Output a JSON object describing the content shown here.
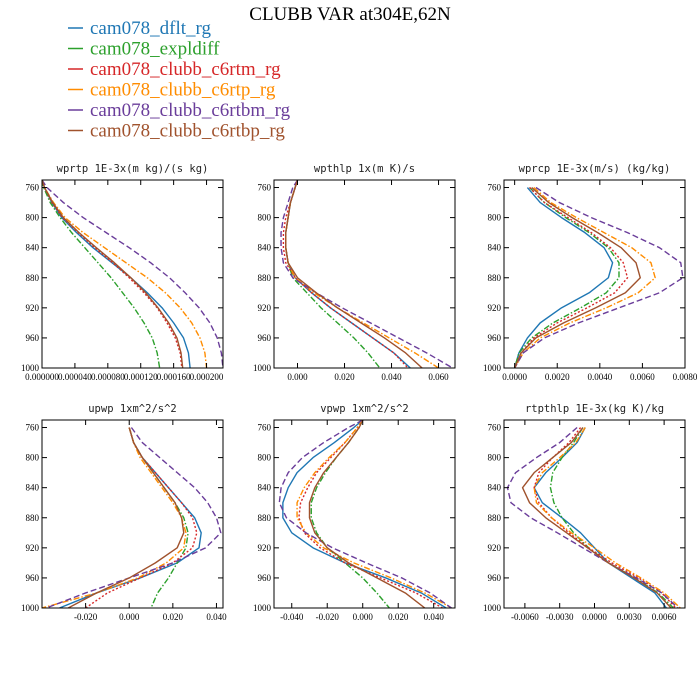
{
  "figure": {
    "title": "CLUBB VAR at304E,62N",
    "legend": [
      {
        "name": "cam078_dflt_rg",
        "color": "#1f77b4",
        "dash": "solid"
      },
      {
        "name": "cam078_expldiff",
        "color": "#2ca02c",
        "dash": "dashdot"
      },
      {
        "name": "cam078_clubb_c6rtm_rg",
        "color": "#d62728",
        "dash": "dotted"
      },
      {
        "name": "cam078_clubb_c6rtp_rg",
        "color": "#ff8c00",
        "dash": "dashdot"
      },
      {
        "name": "cam078_clubb_c6rtbm_rg",
        "color": "#6a3d9a",
        "dash": "dash"
      },
      {
        "name": "cam078_clubb_c6rtbp_rg",
        "color": "#a0522d",
        "dash": "solid"
      }
    ]
  },
  "chart_data": [
    {
      "type": "line",
      "title": "wprtp  1E-3x(m kg)/(s kg)",
      "xlim": [
        0.0,
        0.00022
      ],
      "ylim": [
        1000,
        750
      ],
      "xticks": [
        0.0,
        4e-05,
        8e-05,
        0.00012,
        0.00016,
        0.0002
      ],
      "xtick_labels": [
        "0.000000",
        "0.000040",
        "0.000080",
        "0.000120",
        "0.000160",
        "0.000200"
      ],
      "yticks": [
        760,
        800,
        840,
        880,
        920,
        960,
        1000
      ],
      "y": [
        750,
        760,
        780,
        800,
        820,
        840,
        860,
        880,
        900,
        920,
        940,
        960,
        980,
        1000
      ],
      "series": [
        {
          "values": [
            0.0,
            3e-06,
            1.2e-05,
            2.4e-05,
            4.2e-05,
            6.2e-05,
            8.5e-05,
            0.000108,
            0.000128,
            0.000146,
            0.00016,
            0.000172,
            0.000178,
            0.00018
          ]
        },
        {
          "values": [
            0.0,
            2e-06,
            1e-05,
            2.2e-05,
            3.6e-05,
            5.2e-05,
            6.8e-05,
            8.4e-05,
            9.8e-05,
            0.000112,
            0.000124,
            0.000134,
            0.00014,
            0.000143
          ]
        },
        {
          "values": [
            0.0,
            3e-06,
            1.2e-05,
            2.5e-05,
            4.4e-05,
            6.4e-05,
            8.6e-05,
            0.000106,
            0.000124,
            0.00014,
            0.000152,
            0.000162,
            0.000168,
            0.00017
          ]
        },
        {
          "values": [
            0.0,
            3e-06,
            1.4e-05,
            2.8e-05,
            5e-05,
            7.6e-05,
            0.000102,
            0.000128,
            0.00015,
            0.000168,
            0.000182,
            0.000192,
            0.000198,
            0.0002
          ]
        },
        {
          "values": [
            0.0,
            6e-06,
            2.6e-05,
            5e-05,
            7.8e-05,
            0.000106,
            0.000132,
            0.000155,
            0.000174,
            0.000191,
            0.000204,
            0.000213,
            0.000218,
            0.00022
          ]
        },
        {
          "values": [
            0.0,
            3e-06,
            1.3e-05,
            2.6e-05,
            4.5e-05,
            6.6e-05,
            8.8e-05,
            0.000108,
            0.000126,
            0.000141,
            0.000154,
            0.000164,
            0.000169,
            0.000171
          ]
        }
      ]
    },
    {
      "type": "line",
      "title": "wpthlp  1x(m K)/s",
      "xlim": [
        -0.01,
        0.067
      ],
      "ylim": [
        1000,
        750
      ],
      "xticks": [
        0.0,
        0.02,
        0.04,
        0.06
      ],
      "xtick_labels": [
        "0.000",
        "0.020",
        "0.040",
        "0.060"
      ],
      "yticks": [
        760,
        800,
        840,
        880,
        920,
        960,
        1000
      ],
      "y": [
        750,
        760,
        780,
        800,
        820,
        840,
        860,
        880,
        900,
        920,
        940,
        960,
        980,
        1000
      ],
      "series": [
        {
          "values": [
            0.0,
            -0.001,
            -0.003,
            -0.004,
            -0.005,
            -0.005,
            -0.004,
            -0.001,
            0.006,
            0.014,
            0.023,
            0.032,
            0.041,
            0.048
          ]
        },
        {
          "values": [
            0.0,
            -0.001,
            -0.003,
            -0.004,
            -0.005,
            -0.005,
            -0.004,
            -0.002,
            0.004,
            0.01,
            0.017,
            0.024,
            0.03,
            0.035
          ]
        },
        {
          "values": [
            0.0,
            -0.001,
            -0.003,
            -0.005,
            -0.006,
            -0.006,
            -0.005,
            -0.001,
            0.006,
            0.014,
            0.023,
            0.032,
            0.041,
            0.047
          ]
        },
        {
          "values": [
            0.0,
            -0.001,
            -0.003,
            -0.004,
            -0.005,
            -0.005,
            -0.004,
            -0.001,
            0.007,
            0.017,
            0.028,
            0.039,
            0.05,
            0.06
          ]
        },
        {
          "values": [
            0.0,
            -0.002,
            -0.004,
            -0.006,
            -0.007,
            -0.007,
            -0.006,
            -0.002,
            0.008,
            0.019,
            0.031,
            0.043,
            0.055,
            0.066
          ]
        },
        {
          "values": [
            0.0,
            -0.001,
            -0.003,
            -0.004,
            -0.005,
            -0.005,
            -0.004,
            0.0,
            0.008,
            0.017,
            0.027,
            0.037,
            0.046,
            0.053
          ]
        }
      ]
    },
    {
      "type": "line",
      "title": "wprcp  1E-3x(m/s) (kg/kg)",
      "xlim": [
        -0.0005,
        0.008
      ],
      "ylim": [
        1000,
        750
      ],
      "xticks": [
        0.0,
        0.002,
        0.004,
        0.006,
        0.008
      ],
      "xtick_labels": [
        "0.0000",
        "0.0020",
        "0.0040",
        "0.0060",
        "0.0080"
      ],
      "yticks": [
        760,
        800,
        840,
        880,
        920,
        960,
        1000
      ],
      "y": [
        760,
        780,
        800,
        820,
        840,
        860,
        880,
        900,
        920,
        940,
        960,
        980,
        1000
      ],
      "series": [
        {
          "values": [
            0.0006,
            0.0012,
            0.0022,
            0.0033,
            0.0042,
            0.0046,
            0.0044,
            0.0035,
            0.0022,
            0.0012,
            0.0006,
            0.0002,
            0.0
          ]
        },
        {
          "values": [
            0.0007,
            0.0014,
            0.0024,
            0.0035,
            0.0044,
            0.0049,
            0.0049,
            0.0043,
            0.0031,
            0.0018,
            0.0008,
            0.0002,
            0.0
          ]
        },
        {
          "values": [
            0.0007,
            0.0014,
            0.0025,
            0.0036,
            0.0045,
            0.0051,
            0.0053,
            0.0047,
            0.0034,
            0.002,
            0.0009,
            0.0003,
            0.0
          ]
        },
        {
          "values": [
            0.0009,
            0.0017,
            0.0029,
            0.0042,
            0.0055,
            0.0064,
            0.0066,
            0.0058,
            0.0043,
            0.0026,
            0.0012,
            0.0004,
            0.0
          ]
        },
        {
          "values": [
            0.001,
            0.0021,
            0.0036,
            0.0053,
            0.0068,
            0.0078,
            0.0079,
            0.0068,
            0.0049,
            0.003,
            0.0014,
            0.0004,
            0.0
          ]
        },
        {
          "values": [
            0.0008,
            0.0016,
            0.0027,
            0.0039,
            0.005,
            0.0057,
            0.0059,
            0.0052,
            0.0038,
            0.0023,
            0.001,
            0.0003,
            0.0
          ]
        }
      ]
    },
    {
      "type": "line",
      "title": "upwp  1xm^2/s^2",
      "xlim": [
        -0.04,
        0.043
      ],
      "ylim": [
        1000,
        750
      ],
      "xticks": [
        -0.02,
        0.0,
        0.02,
        0.04
      ],
      "xtick_labels": [
        "-0.020",
        "0.000",
        "0.020",
        "0.040"
      ],
      "yticks": [
        760,
        800,
        840,
        880,
        920,
        960,
        1000
      ],
      "y": [
        760,
        780,
        800,
        820,
        840,
        860,
        880,
        900,
        920,
        940,
        960,
        980,
        1000
      ],
      "series": [
        {
          "values": [
            0.0,
            0.002,
            0.006,
            0.012,
            0.018,
            0.024,
            0.03,
            0.033,
            0.032,
            0.022,
            0.005,
            -0.015,
            -0.032
          ]
        },
        {
          "values": [
            0.0,
            0.002,
            0.006,
            0.011,
            0.016,
            0.021,
            0.025,
            0.027,
            0.026,
            0.022,
            0.018,
            0.013,
            0.01
          ]
        },
        {
          "values": [
            0.0,
            0.002,
            0.006,
            0.012,
            0.018,
            0.024,
            0.029,
            0.031,
            0.029,
            0.02,
            0.005,
            -0.01,
            -0.02
          ]
        },
        {
          "values": [
            0.0,
            0.002,
            0.005,
            0.01,
            0.015,
            0.02,
            0.024,
            0.026,
            0.025,
            0.017,
            0.004,
            -0.015,
            -0.04
          ]
        },
        {
          "values": [
            0.001,
            0.006,
            0.014,
            0.022,
            0.03,
            0.036,
            0.04,
            0.042,
            0.035,
            0.02,
            0.0,
            -0.02,
            -0.038
          ]
        },
        {
          "values": [
            0.0,
            0.002,
            0.006,
            0.011,
            0.016,
            0.021,
            0.024,
            0.025,
            0.022,
            0.012,
            0.0,
            -0.015,
            -0.028
          ]
        }
      ]
    },
    {
      "type": "line",
      "title": "vpwp  1xm^2/s^2",
      "xlim": [
        -0.05,
        0.052
      ],
      "ylim": [
        1000,
        750
      ],
      "xticks": [
        -0.04,
        -0.02,
        0.0,
        0.02,
        0.04
      ],
      "xtick_labels": [
        "-0.040",
        "-0.020",
        "0.000",
        "0.020",
        "0.040"
      ],
      "yticks": [
        760,
        800,
        840,
        880,
        920,
        960,
        1000
      ],
      "y": [
        750,
        760,
        780,
        800,
        820,
        840,
        860,
        880,
        900,
        920,
        940,
        960,
        980,
        1000
      ],
      "series": [
        {
          "values": [
            0.0,
            -0.005,
            -0.016,
            -0.028,
            -0.037,
            -0.042,
            -0.045,
            -0.045,
            -0.04,
            -0.028,
            -0.01,
            0.013,
            0.033,
            0.047
          ]
        },
        {
          "values": [
            0.0,
            -0.002,
            -0.008,
            -0.015,
            -0.021,
            -0.026,
            -0.029,
            -0.029,
            -0.026,
            -0.02,
            -0.01,
            0.0,
            0.008,
            0.015
          ]
        },
        {
          "values": [
            0.0,
            -0.003,
            -0.01,
            -0.018,
            -0.026,
            -0.031,
            -0.035,
            -0.036,
            -0.033,
            -0.024,
            -0.01,
            0.01,
            0.03,
            0.045
          ]
        },
        {
          "values": [
            0.0,
            -0.003,
            -0.01,
            -0.019,
            -0.027,
            -0.033,
            -0.037,
            -0.037,
            -0.032,
            -0.022,
            -0.005,
            0.016,
            0.035,
            0.05
          ]
        },
        {
          "values": [
            0.0,
            -0.008,
            -0.022,
            -0.034,
            -0.042,
            -0.046,
            -0.047,
            -0.043,
            -0.032,
            -0.017,
            0.002,
            0.022,
            0.038,
            0.05
          ]
        },
        {
          "values": [
            0.0,
            -0.002,
            -0.008,
            -0.015,
            -0.022,
            -0.027,
            -0.03,
            -0.03,
            -0.027,
            -0.02,
            -0.008,
            0.008,
            0.024,
            0.035
          ]
        }
      ]
    },
    {
      "type": "line",
      "title": "rtpthlp  1E-3x(kg K)/kg",
      "xlim": [
        -0.0078,
        0.0078
      ],
      "ylim": [
        1000,
        750
      ],
      "xticks": [
        -0.006,
        -0.003,
        0.0,
        0.003,
        0.006
      ],
      "xtick_labels": [
        "-0.0060",
        "-0.0030",
        "0.0000",
        "0.0030",
        "0.0060"
      ],
      "yticks": [
        760,
        800,
        840,
        880,
        920,
        960,
        1000
      ],
      "y": [
        760,
        780,
        800,
        820,
        840,
        860,
        880,
        900,
        920,
        940,
        960,
        980,
        1000
      ],
      "series": [
        {
          "values": [
            -0.0008,
            -0.0015,
            -0.0028,
            -0.0042,
            -0.0052,
            -0.0045,
            -0.0028,
            -0.0012,
            0.0,
            0.0012,
            0.0032,
            0.0052,
            0.0062
          ]
        },
        {
          "values": [
            -0.001,
            -0.0018,
            -0.0028,
            -0.0036,
            -0.0038,
            -0.0035,
            -0.0028,
            -0.0018,
            -0.0005,
            0.0012,
            0.0035,
            0.0055,
            0.0068
          ]
        },
        {
          "values": [
            -0.0012,
            -0.0022,
            -0.0036,
            -0.0048,
            -0.0052,
            -0.0048,
            -0.0037,
            -0.0022,
            -0.0005,
            0.0015,
            0.0038,
            0.0058,
            0.007
          ]
        },
        {
          "values": [
            -0.0008,
            -0.0016,
            -0.003,
            -0.0045,
            -0.0052,
            -0.005,
            -0.0037,
            -0.002,
            0.0,
            0.0018,
            0.004,
            0.006,
            0.0074
          ]
        },
        {
          "values": [
            -0.0015,
            -0.003,
            -0.005,
            -0.0068,
            -0.0075,
            -0.0072,
            -0.0055,
            -0.0032,
            -0.001,
            0.0012,
            0.0036,
            0.0058,
            0.0072
          ]
        },
        {
          "values": [
            -0.001,
            -0.002,
            -0.0036,
            -0.0052,
            -0.0062,
            -0.0056,
            -0.0042,
            -0.0024,
            -0.0006,
            0.0012,
            0.0034,
            0.0054,
            0.0066
          ]
        }
      ]
    }
  ]
}
